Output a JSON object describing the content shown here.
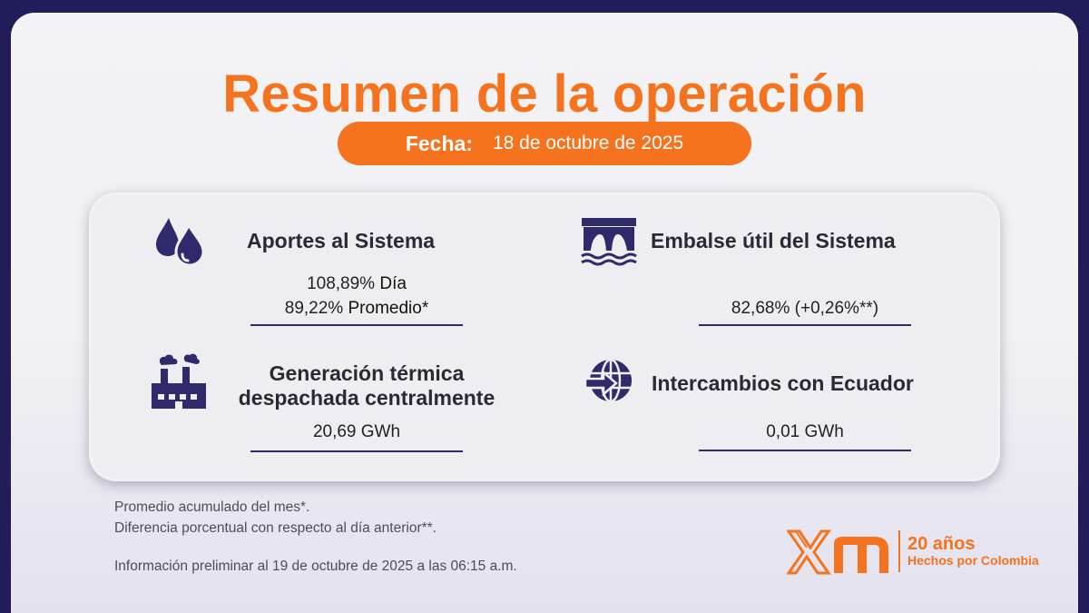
{
  "title": "Resumen de la operación",
  "date": {
    "label": "Fecha:",
    "value": "18 de octubre de 2025"
  },
  "metrics": {
    "aportes": {
      "title": "Aportes al Sistema",
      "line1_value": "108,89%",
      "line1_label": "Día",
      "line2_value": "89,22%",
      "line2_label": "Promedio*",
      "icon": "water-drops-icon"
    },
    "embalse": {
      "title": "Embalse útil del Sistema",
      "value": "82,68% (+0,26%**)",
      "icon": "dam-icon"
    },
    "termica": {
      "title_line1": "Generación térmica",
      "title_line2": "despachada centralmente",
      "value": "20,69 GWh",
      "icon": "factory-icon"
    },
    "ecuador": {
      "title": "Intercambios con Ecuador",
      "value": "0,01 GWh",
      "icon": "globe-exchange-icon"
    }
  },
  "footnotes": {
    "note1": "Promedio acumulado del mes*.",
    "note2": "Diferencia porcentual con respecto al día anterior**.",
    "note3": "Información preliminar al 19 de octubre de 2025 a las 06:15 a.m."
  },
  "logo": {
    "text1": "20 años",
    "text2": "Hechos por Colombia"
  },
  "colors": {
    "accent": "#f5731e",
    "navy": "#211c5a",
    "icon": "#2e2a6b"
  }
}
